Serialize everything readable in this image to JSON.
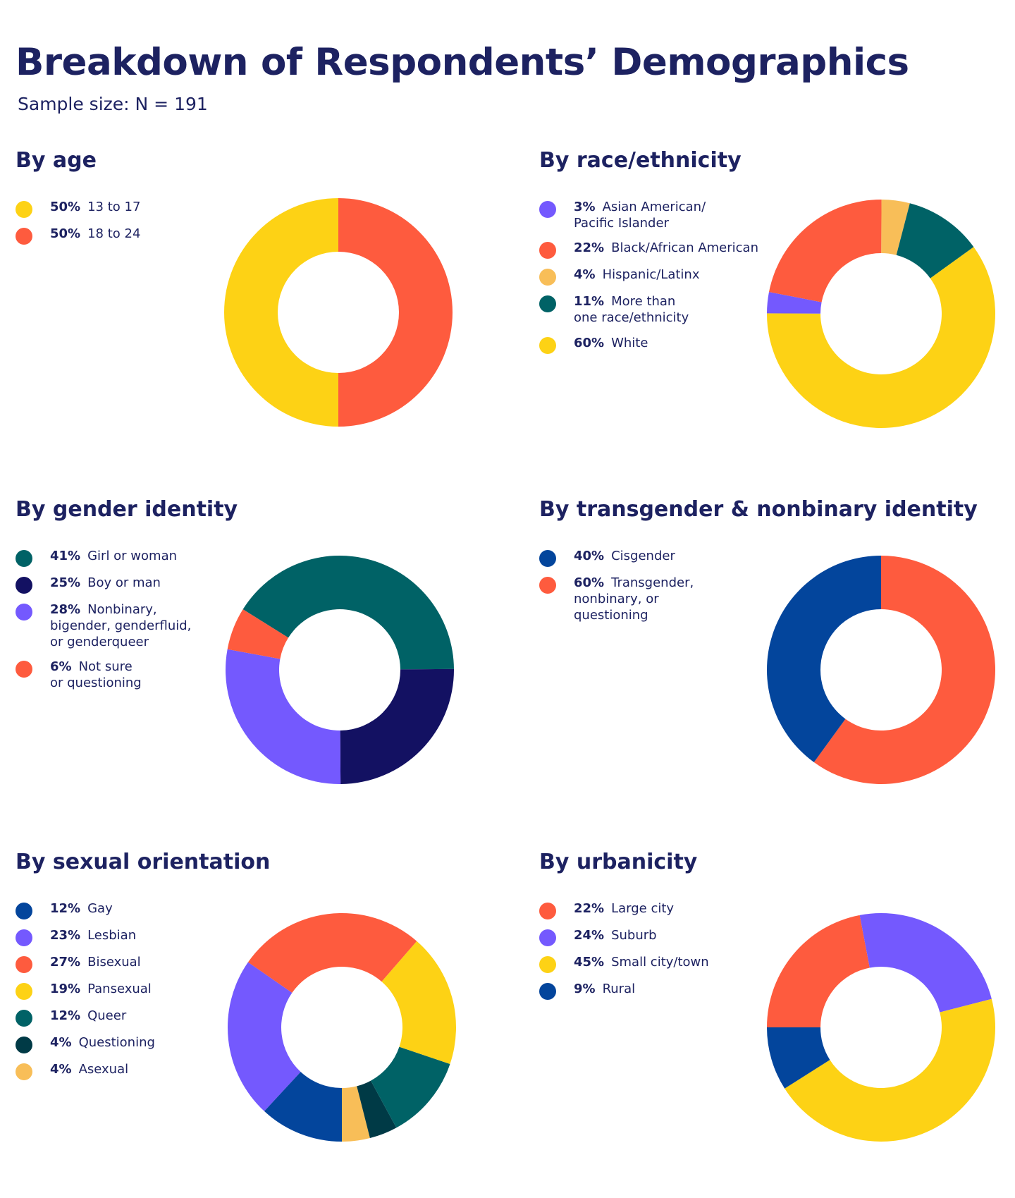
{
  "title": "Breakdown of Respondents’ Demographics",
  "subtitle": "Sample size: N = 191",
  "colors": {
    "yellow": "#FDD215",
    "coral": "#FE5B3E",
    "purple": "#7459FE",
    "light_orange": "#F8BE58",
    "teal": "#006266",
    "navy": "#131162",
    "blue": "#03459C",
    "dark_teal": "#003A46"
  },
  "chart_data": [
    {
      "type": "pie",
      "title": "By age",
      "categories": [
        "13 to 17",
        "18 to 24"
      ],
      "labels": [
        "50%",
        "50%"
      ],
      "values": [
        50,
        50
      ],
      "colors": [
        "#FDD215",
        "#FE5B3E"
      ]
    },
    {
      "type": "pie",
      "title": "By race/ethnicity",
      "categories": [
        "Asian American/\nPacific Islander",
        "Black/African American",
        "Hispanic/Latinx",
        "More than\none race/ethnicity",
        "White"
      ],
      "labels": [
        "3%",
        "22%",
        "4%",
        "11%",
        "60%"
      ],
      "values": [
        3,
        22,
        4,
        11,
        60
      ],
      "colors": [
        "#7459FE",
        "#FE5B3E",
        "#F8BE58",
        "#006266",
        "#FDD215"
      ]
    },
    {
      "type": "pie",
      "title": "By gender identity",
      "categories": [
        "Girl or woman",
        "Boy or man",
        "Nonbinary,\nbigender, genderfluid,\nor genderqueer",
        "Not sure\nor questioning"
      ],
      "labels": [
        "41%",
        "25%",
        "28%",
        "6%"
      ],
      "values": [
        41,
        25,
        28,
        6
      ],
      "colors": [
        "#006266",
        "#131162",
        "#7459FE",
        "#FE5B3E"
      ]
    },
    {
      "type": "pie",
      "title": "By transgender & nonbinary identity",
      "categories": [
        "Cisgender",
        "Transgender,\nnonbinary, or\nquestioning"
      ],
      "labels": [
        "40%",
        "60%"
      ],
      "values": [
        40,
        60
      ],
      "colors": [
        "#03459C",
        "#FE5B3E"
      ]
    },
    {
      "type": "pie",
      "title": "By sexual orientation",
      "categories": [
        "Gay",
        "Lesbian",
        "Bisexual",
        "Pansexual",
        "Queer",
        "Questioning",
        "Asexual"
      ],
      "labels": [
        "12%",
        "23%",
        "27%",
        "19%",
        "12%",
        "4%",
        "4%"
      ],
      "values": [
        12,
        23,
        27,
        19,
        12,
        4,
        4
      ],
      "colors": [
        "#03459C",
        "#7459FE",
        "#FE5B3E",
        "#FDD215",
        "#006266",
        "#003A46",
        "#F8BE58"
      ]
    },
    {
      "type": "pie",
      "title": "By urbanicity",
      "categories": [
        "Large city",
        "Suburb",
        "Small city/town",
        "Rural"
      ],
      "labels": [
        "22%",
        "24%",
        "45%",
        "9%"
      ],
      "values": [
        22,
        24,
        45,
        9
      ],
      "colors": [
        "#FE5B3E",
        "#7459FE",
        "#FDD215",
        "#03459C"
      ]
    }
  ]
}
